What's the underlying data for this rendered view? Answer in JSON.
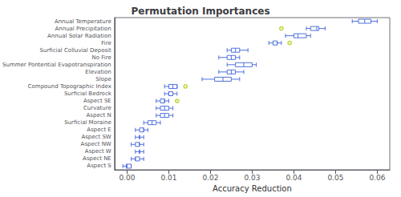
{
  "chart_data": {
    "type": "boxplot",
    "title": "Permutation Importances",
    "xlabel": "Accuracy Reduction",
    "orientation": "horizontal",
    "grid": false,
    "categories": [
      "Annual Temperature",
      "Annual Precipitation",
      "Annual Solar Radiation",
      "Fire",
      "Surficial Colluvial Deposit",
      "No Fire",
      "Summer Pontential Evapotranspiration",
      "Elevation",
      "Slope",
      "Compound Topographic Index",
      "Surficial Bedrock",
      "Aspect SE",
      "Curvature",
      "Aspect N",
      "Surficial Moraine",
      "Aspect E",
      "Aspect SW",
      "Aspect NW",
      "Aspect W",
      "Aspect NE",
      "Aspect S"
    ],
    "boxes": [
      {
        "whislo": 0.054,
        "q1": 0.0555,
        "med": 0.057,
        "q3": 0.0585,
        "whishi": 0.06,
        "fliers": []
      },
      {
        "whislo": 0.043,
        "q1": 0.044,
        "med": 0.0455,
        "q3": 0.046,
        "whishi": 0.0475,
        "fliers": [
          0.037
        ]
      },
      {
        "whislo": 0.038,
        "q1": 0.04,
        "med": 0.041,
        "q3": 0.043,
        "whishi": 0.044,
        "fliers": []
      },
      {
        "whislo": 0.034,
        "q1": 0.035,
        "med": 0.036,
        "q3": 0.036,
        "whishi": 0.037,
        "fliers": [
          0.039
        ]
      },
      {
        "whislo": 0.024,
        "q1": 0.025,
        "med": 0.026,
        "q3": 0.027,
        "whishi": 0.029,
        "fliers": []
      },
      {
        "whislo": 0.022,
        "q1": 0.024,
        "med": 0.025,
        "q3": 0.026,
        "whishi": 0.027,
        "fliers": []
      },
      {
        "whislo": 0.024,
        "q1": 0.026,
        "med": 0.028,
        "q3": 0.03,
        "whishi": 0.031,
        "fliers": []
      },
      {
        "whislo": 0.022,
        "q1": 0.024,
        "med": 0.025,
        "q3": 0.026,
        "whishi": 0.028,
        "fliers": []
      },
      {
        "whislo": 0.018,
        "q1": 0.021,
        "med": 0.023,
        "q3": 0.025,
        "whishi": 0.027,
        "fliers": []
      },
      {
        "whislo": 0.009,
        "q1": 0.01,
        "med": 0.011,
        "q3": 0.012,
        "whishi": 0.012,
        "fliers": [
          0.014
        ]
      },
      {
        "whislo": 0.009,
        "q1": 0.01,
        "med": 0.01,
        "q3": 0.011,
        "whishi": 0.012,
        "fliers": []
      },
      {
        "whislo": 0.007,
        "q1": 0.008,
        "med": 0.009,
        "q3": 0.009,
        "whishi": 0.01,
        "fliers": [
          0.012
        ]
      },
      {
        "whislo": 0.007,
        "q1": 0.008,
        "med": 0.009,
        "q3": 0.01,
        "whishi": 0.011,
        "fliers": []
      },
      {
        "whislo": 0.007,
        "q1": 0.008,
        "med": 0.009,
        "q3": 0.01,
        "whishi": 0.011,
        "fliers": []
      },
      {
        "whislo": 0.004,
        "q1": 0.005,
        "med": 0.006,
        "q3": 0.007,
        "whishi": 0.008,
        "fliers": []
      },
      {
        "whislo": 0.002,
        "q1": 0.003,
        "med": 0.004,
        "q3": 0.004,
        "whishi": 0.005,
        "fliers": []
      },
      {
        "whislo": 0.002,
        "q1": 0.003,
        "med": 0.003,
        "q3": 0.003,
        "whishi": 0.004,
        "fliers": []
      },
      {
        "whislo": 0.001,
        "q1": 0.002,
        "med": 0.003,
        "q3": 0.003,
        "whishi": 0.004,
        "fliers": []
      },
      {
        "whislo": 0.002,
        "q1": 0.003,
        "med": 0.003,
        "q3": 0.003,
        "whishi": 0.004,
        "fliers": []
      },
      {
        "whislo": 0.001,
        "q1": 0.002,
        "med": 0.002,
        "q3": 0.003,
        "whishi": 0.004,
        "fliers": []
      },
      {
        "whislo": -0.001,
        "q1": -0.0002,
        "med": 0.0,
        "q3": 0.001,
        "whishi": 0.001,
        "fliers": []
      }
    ],
    "xlim": [
      -0.003,
      0.063
    ],
    "xticks": [
      {
        "value": 0.0,
        "label": "0.00"
      },
      0.01,
      0.02,
      0.03,
      0.04,
      0.05,
      0.06
    ]
  }
}
